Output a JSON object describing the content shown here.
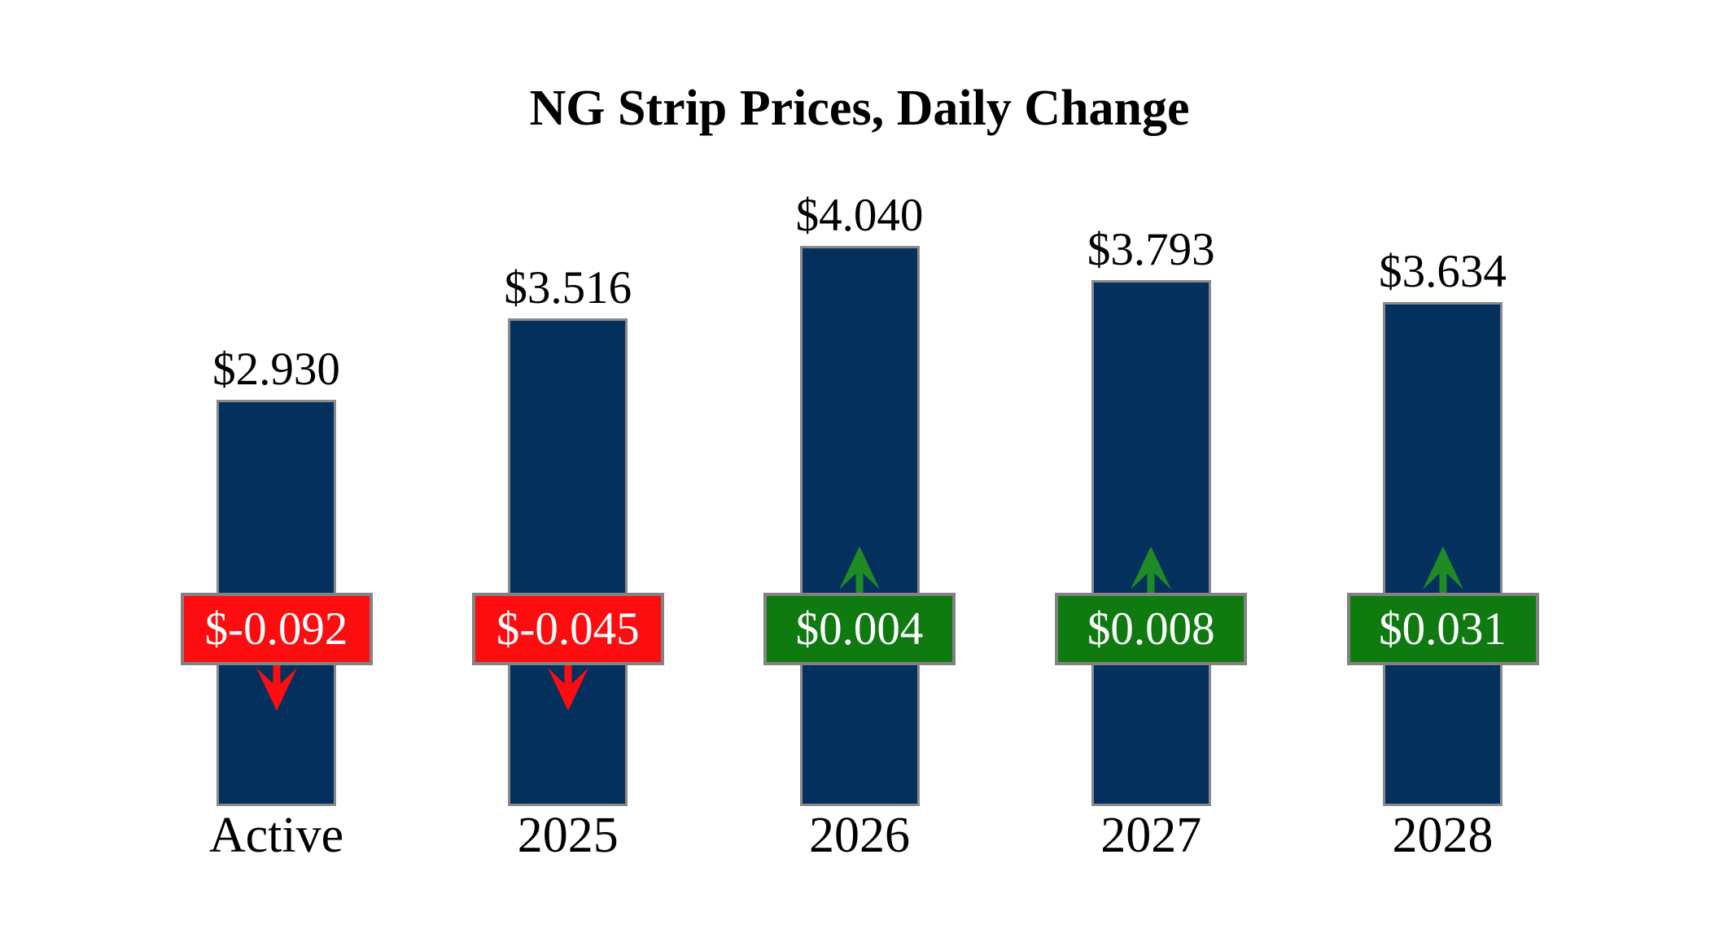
{
  "title": "NG Strip Prices, Daily Change",
  "colors": {
    "background": "#ffffff",
    "bar_fill": "#04305e",
    "bar_border": "#8a8a8a",
    "badge_border": "#828282",
    "negative_fill": "#fd0d10",
    "positive_fill": "#0e7a10",
    "arrow_down": "#fd0d10",
    "arrow_up": "#1f8b24",
    "label_text": "#000000",
    "badge_text": "#ffffff"
  },
  "chart_data": {
    "type": "bar",
    "title": "NG Strip Prices, Daily Change",
    "categories": [
      "Active",
      "2025",
      "2026",
      "2027",
      "2028"
    ],
    "series": [
      {
        "name": "Strip Price",
        "values": [
          2.93,
          3.516,
          4.04,
          3.793,
          3.634
        ]
      },
      {
        "name": "Daily Change",
        "values": [
          -0.092,
          -0.045,
          0.004,
          0.008,
          0.031
        ]
      }
    ],
    "price_labels": [
      "$2.930",
      "$3.516",
      "$4.040",
      "$3.793",
      "$3.634"
    ],
    "change_labels": [
      "$-0.092",
      "$-0.045",
      "$0.004",
      "$0.008",
      "$0.031"
    ],
    "xlabel": "",
    "ylabel": "",
    "ylim": [
      0,
      4.3
    ],
    "grid": false,
    "legend": false,
    "axes_hidden": true
  }
}
